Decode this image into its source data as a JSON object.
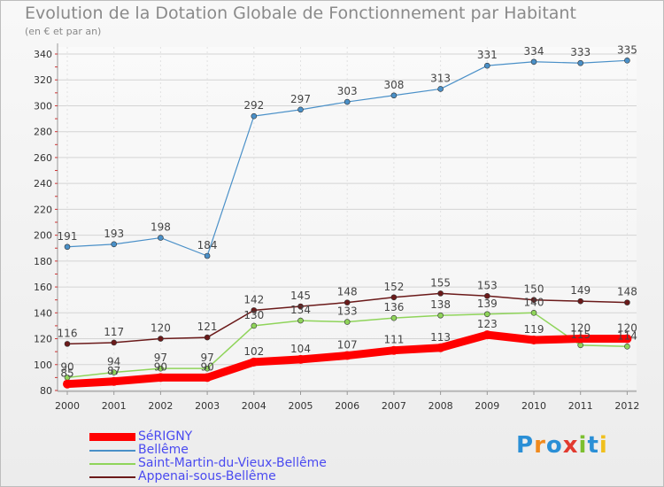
{
  "chart_data": {
    "type": "line",
    "title": "Evolution de la Dotation Globale de Fonctionnement par Habitant",
    "subtitle": "(en € et par an)",
    "xlabel": "",
    "ylabel": "",
    "categories": [
      "2000",
      "2001",
      "2002",
      "2003",
      "2004",
      "2005",
      "2006",
      "2007",
      "2008",
      "2009",
      "2010",
      "2011",
      "2012"
    ],
    "ylim": [
      80,
      340
    ],
    "yticks": [
      80,
      100,
      120,
      140,
      160,
      180,
      200,
      220,
      240,
      260,
      280,
      300,
      320,
      340
    ],
    "legend_position": "bottom-left",
    "series": [
      {
        "name": "SéRIGNY",
        "color": "#ff0000",
        "values": [
          85,
          87,
          90,
          90,
          102,
          104,
          107,
          111,
          113,
          123,
          119,
          120,
          120
        ]
      },
      {
        "name": "Bellême",
        "color": "#4a90c8",
        "values": [
          191,
          193,
          198,
          184,
          292,
          297,
          303,
          308,
          313,
          331,
          334,
          333,
          335
        ]
      },
      {
        "name": "Saint-Martin-du-Vieux-Bellême",
        "color": "#8fd45a",
        "values": [
          90,
          94,
          97,
          97,
          130,
          134,
          133,
          136,
          138,
          139,
          140,
          115,
          114
        ]
      },
      {
        "name": "Appenai-sous-Bellême",
        "color": "#6b1a1a",
        "values": [
          116,
          117,
          120,
          121,
          142,
          145,
          148,
          152,
          155,
          153,
          150,
          149,
          148
        ]
      }
    ]
  },
  "logo": {
    "letters": [
      "P",
      "r",
      "o",
      "x",
      "i",
      "t",
      "i"
    ]
  }
}
